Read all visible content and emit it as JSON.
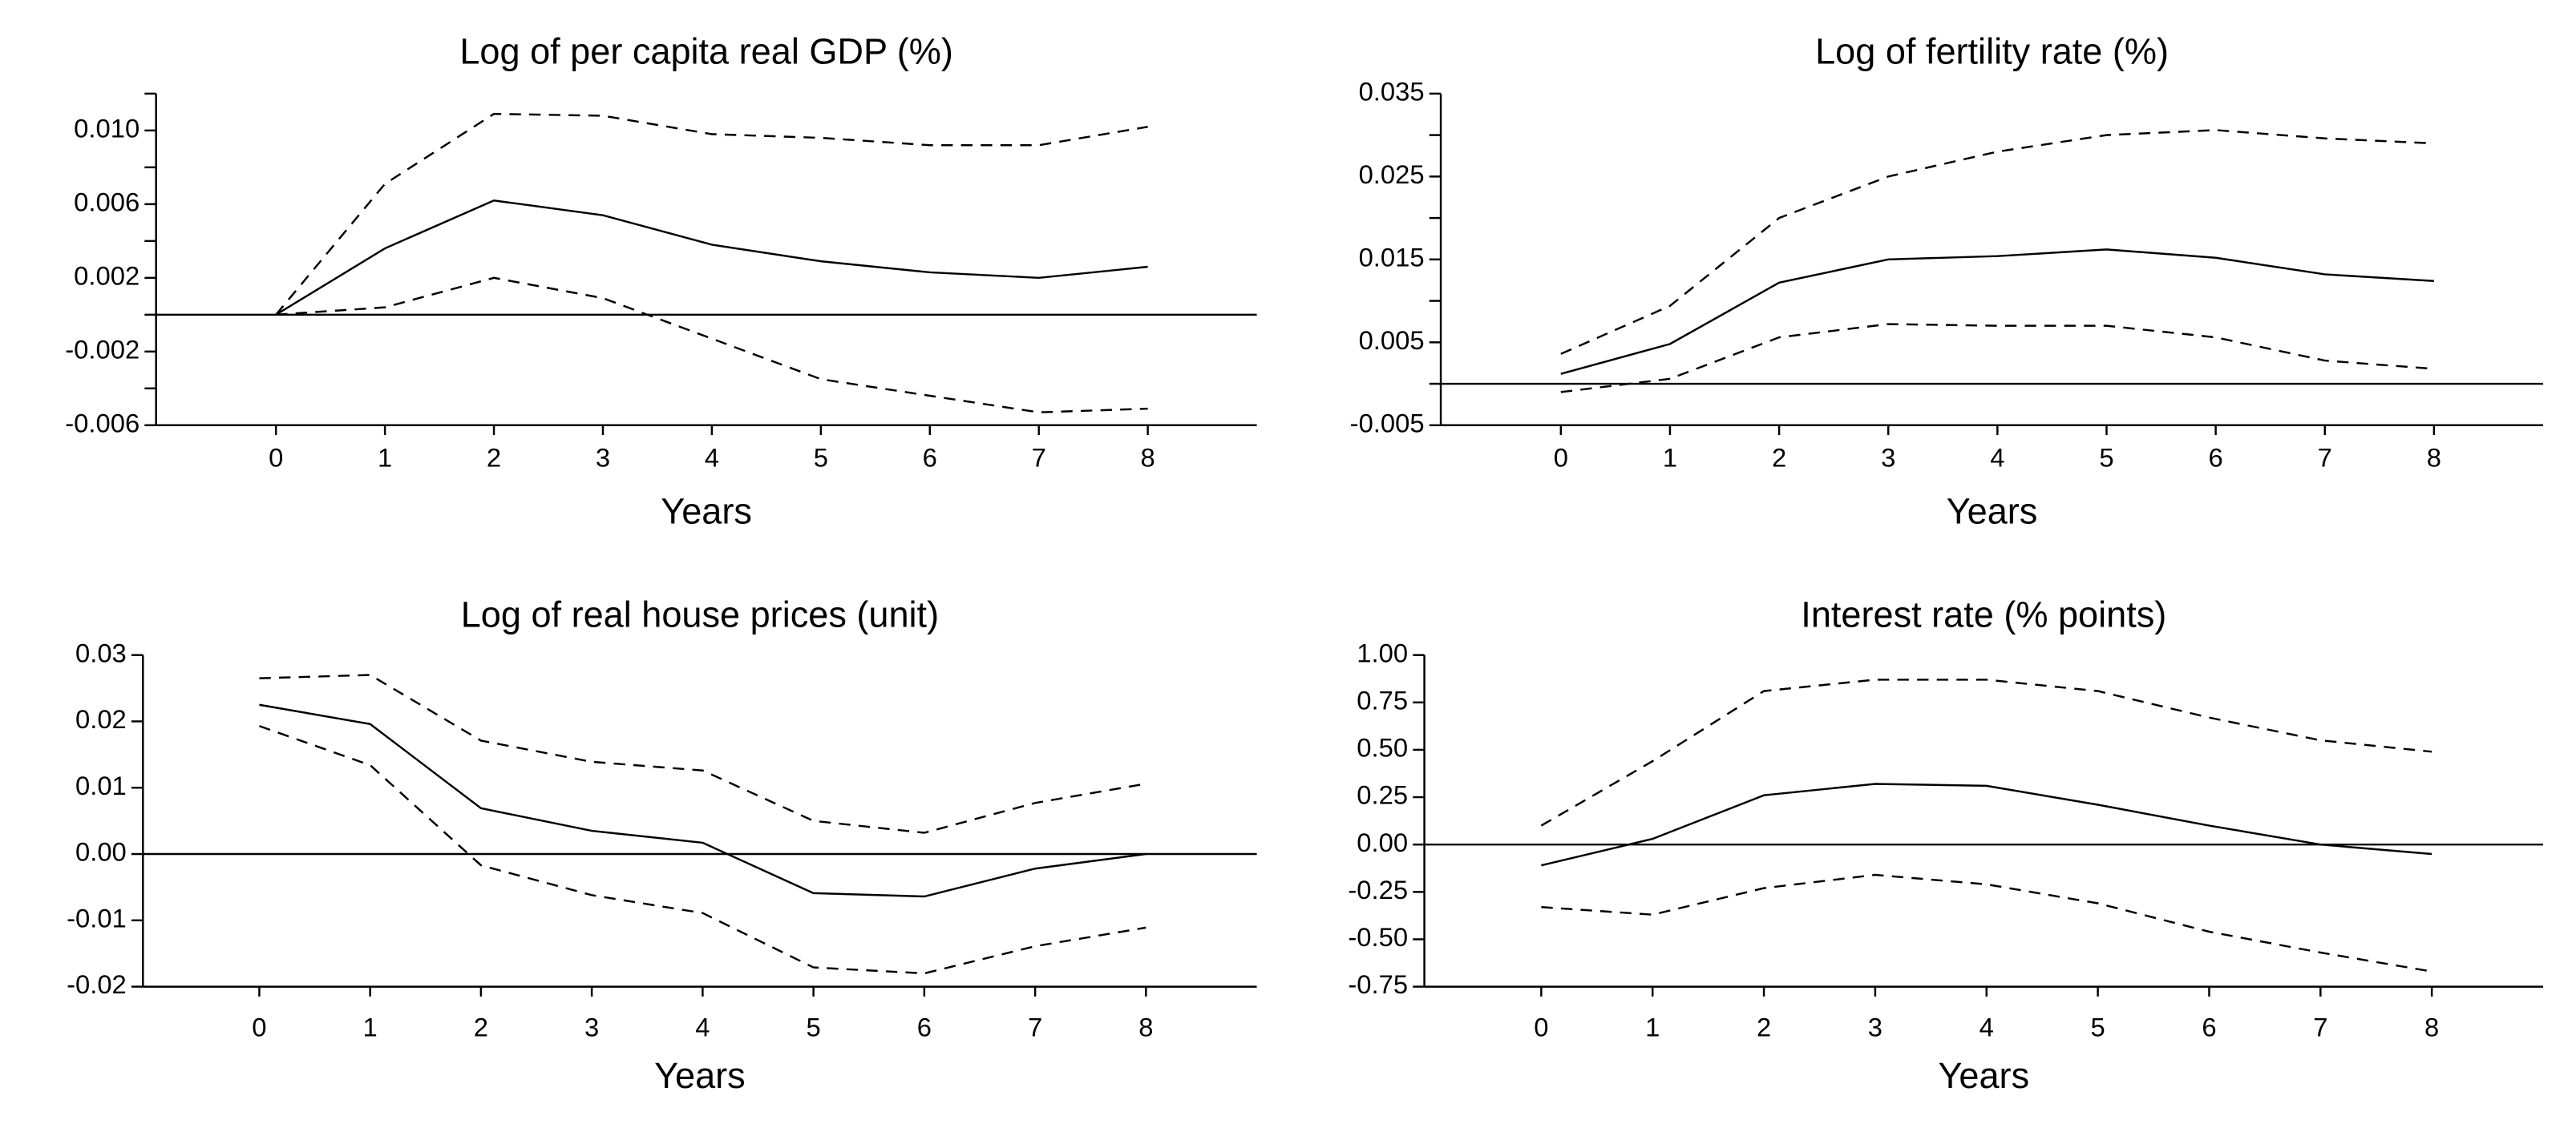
{
  "chart_data": [
    {
      "type": "line",
      "title": "Log of per capita real GDP (%)",
      "x_label": "Years",
      "x": [
        0,
        1,
        2,
        3,
        4,
        5,
        6,
        7,
        8
      ],
      "xlim": [
        -1.1,
        9
      ],
      "xticks": [
        0,
        1,
        2,
        3,
        4,
        5,
        6,
        7,
        8
      ],
      "ylim": [
        -0.006,
        0.012
      ],
      "yticks": [
        {
          "value": 0.01,
          "label": "0.010"
        },
        {
          "value": 0.006,
          "label": "0.006"
        },
        {
          "value": 0.002,
          "label": "0.002"
        },
        {
          "value": -0.002,
          "label": "-0.002"
        },
        {
          "value": -0.006,
          "label": "-0.006"
        }
      ],
      "minor_yticks": [
        0.012,
        0.008,
        0.004,
        0,
        -0.004
      ],
      "hline": 0,
      "series": [
        {
          "color": "#000000",
          "line_style": "solid",
          "values": [
            0,
            0.0036,
            0.0062,
            0.0054,
            0.0038,
            0.0029,
            0.0023,
            0.002,
            0.0026
          ]
        },
        {
          "color": "#000000",
          "line_style": "dashed",
          "values": [
            0,
            0.0071,
            0.0109,
            0.0108,
            0.0098,
            0.0096,
            0.0092,
            0.0092,
            0.0102
          ]
        },
        {
          "color": "#000000",
          "line_style": "dashed",
          "values": [
            0,
            0.0004,
            0.002,
            0.0009,
            -0.0013,
            -0.0035,
            -0.0044,
            -0.0053,
            -0.0051
          ]
        }
      ]
    },
    {
      "type": "line",
      "title": "Log of fertility rate (%)",
      "x_label": "Years",
      "x": [
        0,
        1,
        2,
        3,
        4,
        5,
        6,
        7,
        8
      ],
      "xlim": [
        -1.1,
        9
      ],
      "xticks": [
        0,
        1,
        2,
        3,
        4,
        5,
        6,
        7,
        8
      ],
      "ylim": [
        -0.005,
        0.035
      ],
      "yticks": [
        0.035,
        0.025,
        0.015,
        0.005,
        -0.005
      ],
      "minor_yticks": [
        0.03,
        0.02,
        0.01,
        0
      ],
      "hline": 0,
      "series": [
        {
          "color": "#000000",
          "line_style": "solid",
          "values": [
            0.0012,
            0.0048,
            0.0122,
            0.015,
            0.0154,
            0.0162,
            0.0152,
            0.0132,
            0.0124
          ]
        },
        {
          "color": "#000000",
          "line_style": "dashed",
          "values": [
            0.0036,
            0.0094,
            0.02,
            0.025,
            0.028,
            0.03,
            0.0306,
            0.0296,
            0.029
          ]
        },
        {
          "color": "#000000",
          "line_style": "dashed",
          "values": [
            -0.001,
            0.0006,
            0.0056,
            0.0072,
            0.007,
            0.007,
            0.0056,
            0.0028,
            0.0018
          ]
        }
      ]
    },
    {
      "type": "line",
      "title": "Log of real house prices (unit)",
      "x_label": "Years",
      "x": [
        0,
        1,
        2,
        3,
        4,
        5,
        6,
        7,
        8
      ],
      "xlim": [
        -1.05,
        9
      ],
      "xticks": [
        0,
        1,
        2,
        3,
        4,
        5,
        6,
        7,
        8
      ],
      "ylim": [
        -0.02,
        0.03
      ],
      "yticks": [
        0.03,
        0.02,
        0.01,
        {
          "value": 0,
          "label": "0.00"
        },
        -0.01,
        -0.02
      ],
      "hline": 0,
      "series": [
        {
          "color": "#000000",
          "line_style": "solid",
          "values": [
            0.0225,
            0.0196,
            0.0069,
            0.0035,
            0.0017,
            -0.0059,
            -0.0064,
            -0.0022,
            0
          ]
        },
        {
          "color": "#000000",
          "line_style": "dashed",
          "values": [
            0.0265,
            0.027,
            0.0171,
            0.0139,
            0.0126,
            0.005,
            0.0032,
            0.0077,
            0.0106
          ]
        },
        {
          "color": "#000000",
          "line_style": "dashed",
          "values": [
            0.0193,
            0.0134,
            -0.0017,
            -0.0062,
            -0.0089,
            -0.0171,
            -0.018,
            -0.0139,
            -0.0111
          ]
        }
      ]
    },
    {
      "type": "line",
      "title": "Interest rate (% points)",
      "x_label": "Years",
      "x": [
        0,
        1,
        2,
        3,
        4,
        5,
        6,
        7,
        8
      ],
      "xlim": [
        -1.05,
        9
      ],
      "xticks": [
        0,
        1,
        2,
        3,
        4,
        5,
        6,
        7,
        8
      ],
      "ylim": [
        -0.75,
        1
      ],
      "yticks": [
        {
          "value": 1,
          "label": "1.00"
        },
        0.75,
        {
          "value": 0.5,
          "label": "0.50"
        },
        0.25,
        {
          "value": 0,
          "label": "0.00"
        },
        -0.25,
        {
          "value": -0.5,
          "label": "-0.50"
        },
        -0.75
      ],
      "hline": 0,
      "series": [
        {
          "color": "#000000",
          "line_style": "solid",
          "values": [
            -0.11,
            0.03,
            0.26,
            0.32,
            0.31,
            0.21,
            0.1,
            0,
            -0.05
          ]
        },
        {
          "color": "#000000",
          "line_style": "dashed",
          "values": [
            0.1,
            0.44,
            0.81,
            0.87,
            0.87,
            0.81,
            0.67,
            0.55,
            0.49
          ]
        },
        {
          "color": "#000000",
          "line_style": "dashed",
          "values": [
            -0.33,
            -0.37,
            -0.23,
            -0.16,
            -0.21,
            -0.31,
            -0.46,
            -0.57,
            -0.67
          ]
        }
      ]
    }
  ]
}
